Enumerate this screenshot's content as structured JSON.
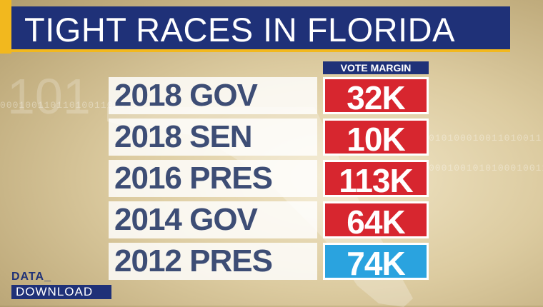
{
  "title": "TIGHT RACES IN FLORIDA",
  "column_header": "VOTE MARGIN",
  "rows": [
    {
      "label": "2018 GOV",
      "value": "32K",
      "color": "#d7262f"
    },
    {
      "label": "2018 SEN",
      "value": "10K",
      "color": "#d7262f"
    },
    {
      "label": "2016 PRES",
      "value": "113K",
      "color": "#d7262f"
    },
    {
      "label": "2014 GOV",
      "value": "64K",
      "color": "#d7262f"
    },
    {
      "label": "2012 PRES",
      "value": "74K",
      "color": "#2aa3df"
    }
  ],
  "logo": {
    "line1": "DATA_",
    "line2": "DOWNLOAD"
  },
  "colors": {
    "navy": "#1f3178",
    "gold": "#f2b81e",
    "republican": "#d7262f",
    "democrat": "#2aa3df"
  }
}
